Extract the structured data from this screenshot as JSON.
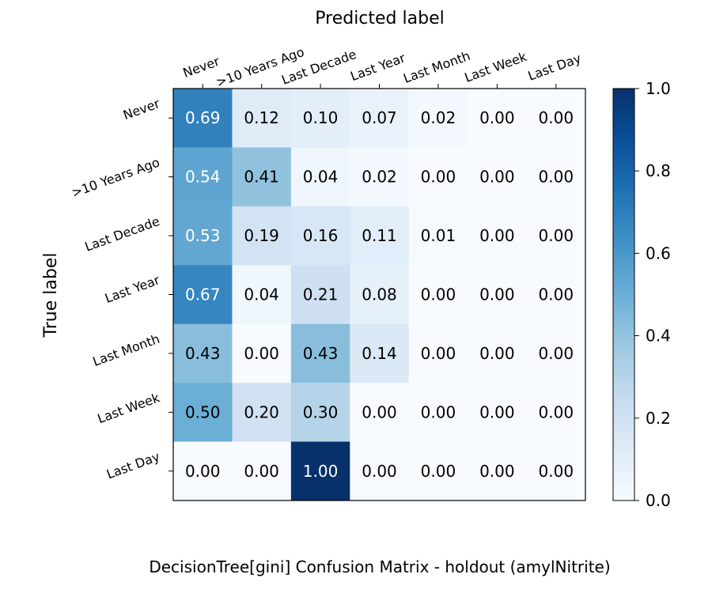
{
  "chart_data": {
    "type": "heatmap",
    "title": "DecisionTree[gini] Confusion Matrix - holdout (amylNitrite)",
    "xlabel": "Predicted label",
    "ylabel": "True label",
    "x_categories": [
      "Never",
      ">10 Years Ago",
      "Last Decade",
      "Last Year",
      "Last Month",
      "Last Week",
      "Last Day"
    ],
    "y_categories": [
      "Never",
      ">10 Years Ago",
      "Last Decade",
      "Last Year",
      "Last Month",
      "Last Week",
      "Last Day"
    ],
    "values": [
      [
        0.69,
        0.12,
        0.1,
        0.07,
        0.02,
        0.0,
        0.0
      ],
      [
        0.54,
        0.41,
        0.04,
        0.02,
        0.0,
        0.0,
        0.0
      ],
      [
        0.53,
        0.19,
        0.16,
        0.11,
        0.01,
        0.0,
        0.0
      ],
      [
        0.67,
        0.04,
        0.21,
        0.08,
        0.0,
        0.0,
        0.0
      ],
      [
        0.43,
        0.0,
        0.43,
        0.14,
        0.0,
        0.0,
        0.0
      ],
      [
        0.5,
        0.2,
        0.3,
        0.0,
        0.0,
        0.0,
        0.0
      ],
      [
        0.0,
        0.0,
        1.0,
        0.0,
        0.0,
        0.0,
        0.0
      ]
    ],
    "colormap": "Blues",
    "vmin": 0.0,
    "vmax": 1.0,
    "colorbar_ticks": [
      "0.0",
      "0.2",
      "0.4",
      "0.6",
      "0.8",
      "1.0"
    ],
    "colorbar_values": [
      0.0,
      0.2,
      0.4,
      0.6,
      0.8,
      1.0
    ],
    "x_axis_position": "top",
    "grid": false,
    "colors": {
      "cmap_low": "#f7fbff",
      "cmap_high": "#08306b",
      "text_dark": "#000000",
      "text_light": "#ffffff"
    }
  }
}
